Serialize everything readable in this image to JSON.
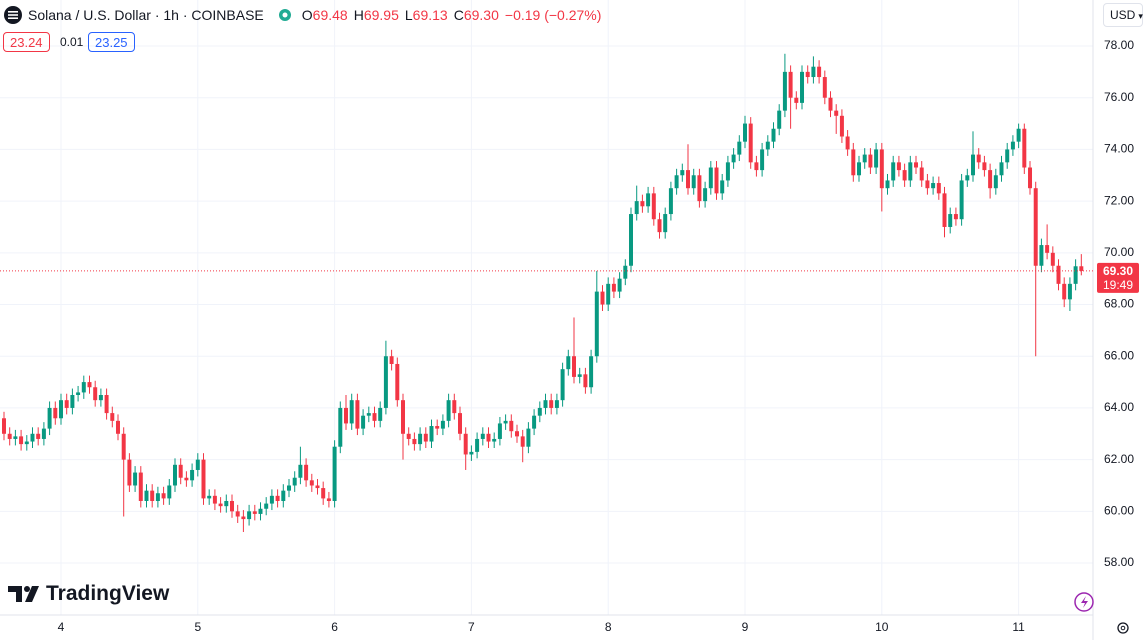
{
  "header": {
    "symbol": "Solana / U.S. Dollar · 1h · COINBASE",
    "o_label": "O",
    "o": "69.48",
    "h_label": "H",
    "h": "69.95",
    "l_label": "L",
    "l": "69.13",
    "c_label": "C",
    "c": "69.30",
    "change": "−0.19 (−0.27%)",
    "bid": "23.24",
    "spread": "0.01",
    "ask": "23.25",
    "currency": "USD",
    "brand": "TradingView"
  },
  "chart_data": {
    "type": "candlestick",
    "x": [
      0,
      1,
      2,
      3,
      4,
      5,
      6,
      7,
      8,
      9,
      10,
      11,
      12,
      13,
      14,
      15,
      16,
      17,
      18,
      19,
      20,
      21,
      22,
      23,
      24,
      25,
      26,
      27,
      28,
      29,
      30,
      31,
      32,
      33,
      34,
      35,
      36,
      37,
      38,
      39,
      40,
      41,
      42,
      43,
      44,
      45,
      46,
      47,
      48,
      49,
      50,
      51,
      52,
      53,
      54,
      55,
      56,
      57,
      58,
      59,
      60,
      61,
      62,
      63,
      64,
      65,
      66,
      67,
      68,
      69,
      70,
      71,
      72,
      73,
      74,
      75,
      76,
      77,
      78,
      79,
      80,
      81,
      82,
      83,
      84,
      85,
      86,
      87,
      88,
      89,
      90,
      91,
      92,
      93,
      94,
      95,
      96,
      97,
      98,
      99,
      100,
      101,
      102,
      103,
      104,
      105,
      106,
      107,
      108,
      109,
      110,
      111,
      112,
      113,
      114,
      115,
      116,
      117,
      118,
      119,
      120,
      121,
      122,
      123,
      124,
      125,
      126,
      127,
      128,
      129,
      130,
      131,
      132,
      133,
      134,
      135,
      136,
      137,
      138,
      139,
      140,
      141,
      142,
      143,
      144,
      145,
      146,
      147,
      148,
      149,
      150,
      151,
      152,
      153,
      154,
      155,
      156,
      157,
      158,
      159,
      160,
      161,
      162,
      163,
      164,
      165,
      166,
      167,
      168,
      169,
      170,
      171,
      172,
      173,
      174,
      175,
      176,
      177,
      178,
      179,
      180,
      181,
      182,
      183,
      184,
      185,
      186,
      187,
      188,
      189
    ],
    "open": [
      63.6,
      63.0,
      62.8,
      62.9,
      62.6,
      62.7,
      63.0,
      62.8,
      63.2,
      64.0,
      63.6,
      64.3,
      64.0,
      64.5,
      64.6,
      65.0,
      64.8,
      64.3,
      64.5,
      63.8,
      63.5,
      63.0,
      62.0,
      61.0,
      61.5,
      60.4,
      60.8,
      60.4,
      60.7,
      60.5,
      61.0,
      61.8,
      61.3,
      61.2,
      61.6,
      62.0,
      60.5,
      60.6,
      60.3,
      60.2,
      60.4,
      60.0,
      59.8,
      59.7,
      60.0,
      59.9,
      60.1,
      60.3,
      60.6,
      60.4,
      60.8,
      61.0,
      61.3,
      61.8,
      61.2,
      61.0,
      60.9,
      60.5,
      60.4,
      62.5,
      64.0,
      63.4,
      64.3,
      63.2,
      63.7,
      63.8,
      63.5,
      64.0,
      66.0,
      65.7,
      64.3,
      63.0,
      62.8,
      62.6,
      63.0,
      62.7,
      63.3,
      63.2,
      63.5,
      64.3,
      63.8,
      63.0,
      62.2,
      62.3,
      62.8,
      63.0,
      62.7,
      62.8,
      63.4,
      63.5,
      63.1,
      62.9,
      62.5,
      63.2,
      63.7,
      64.0,
      64.3,
      64.0,
      64.3,
      65.5,
      66.0,
      65.2,
      65.3,
      64.8,
      66.0,
      68.5,
      68.0,
      68.8,
      68.5,
      69.0,
      69.5,
      71.5,
      72.0,
      71.8,
      72.3,
      71.3,
      70.8,
      71.5,
      72.5,
      73.0,
      73.2,
      72.5,
      73.0,
      72.0,
      72.5,
      73.3,
      72.3,
      72.8,
      73.5,
      73.8,
      74.3,
      75.0,
      73.5,
      73.2,
      74.0,
      74.3,
      74.8,
      75.5,
      77.0,
      76.0,
      75.8,
      77.0,
      76.8,
      77.2,
      76.8,
      76.0,
      75.5,
      75.3,
      74.5,
      74.0,
      73.0,
      73.5,
      73.8,
      73.3,
      74.0,
      72.5,
      72.8,
      73.5,
      73.2,
      72.8,
      73.5,
      73.3,
      72.8,
      72.5,
      72.7,
      72.3,
      71.0,
      71.5,
      71.3,
      72.8,
      73.0,
      73.8,
      73.5,
      73.2,
      72.5,
      73.0,
      73.5,
      74.0,
      74.3,
      74.8,
      73.3,
      72.5,
      69.5,
      70.3,
      70.0,
      69.5,
      68.8,
      68.2,
      68.8,
      69.48
    ],
    "high": [
      63.85,
      63.25,
      63.15,
      63.15,
      62.95,
      63.25,
      63.25,
      63.45,
      64.25,
      64.25,
      64.55,
      64.55,
      64.75,
      64.85,
      65.25,
      65.25,
      65.05,
      64.75,
      64.75,
      64.05,
      63.75,
      63.25,
      62.25,
      61.75,
      61.75,
      61.05,
      61.05,
      60.95,
      60.95,
      61.25,
      62.05,
      62.05,
      61.55,
      61.85,
      62.25,
      62.25,
      60.85,
      60.85,
      60.55,
      60.65,
      60.65,
      60.25,
      60.05,
      60.25,
      60.25,
      60.35,
      60.55,
      60.85,
      60.85,
      61.05,
      61.25,
      61.55,
      62.5,
      62.05,
      61.45,
      61.25,
      61.15,
      60.75,
      62.75,
      64.25,
      64.5,
      64.55,
      64.55,
      63.95,
      64.05,
      64.05,
      64.25,
      66.6,
      66.25,
      65.95,
      64.55,
      63.25,
      63.05,
      63.25,
      63.25,
      63.55,
      63.55,
      63.75,
      64.55,
      64.55,
      64.05,
      63.25,
      62.55,
      63.05,
      63.25,
      63.25,
      63.05,
      63.65,
      63.75,
      63.75,
      63.35,
      63.15,
      63.45,
      63.95,
      64.25,
      64.55,
      64.55,
      64.55,
      65.75,
      66.25,
      67.5,
      65.55,
      65.55,
      66.25,
      69.3,
      68.75,
      69.05,
      69.05,
      69.25,
      69.75,
      71.75,
      72.6,
      72.25,
      72.55,
      72.55,
      71.55,
      71.75,
      72.75,
      73.25,
      73.45,
      74.2,
      73.25,
      73.25,
      72.75,
      73.55,
      73.55,
      73.05,
      73.75,
      74.05,
      74.55,
      75.3,
      75.25,
      73.75,
      74.25,
      74.55,
      75.05,
      75.75,
      77.7,
      77.25,
      76.25,
      77.25,
      77.25,
      77.6,
      77.45,
      77.05,
      76.25,
      75.75,
      75.55,
      74.75,
      74.25,
      73.75,
      74.05,
      74.05,
      74.25,
      74.25,
      73.05,
      73.75,
      73.75,
      73.45,
      73.75,
      73.75,
      73.55,
      73.05,
      72.95,
      72.95,
      72.55,
      71.75,
      71.75,
      73.05,
      73.25,
      74.7,
      74.05,
      73.75,
      73.45,
      73.25,
      73.75,
      74.25,
      74.55,
      75.0,
      75.0,
      73.55,
      72.75,
      70.55,
      71.1,
      70.25,
      69.75,
      69.05,
      69.05,
      69.75,
      69.95
    ],
    "low": [
      62.75,
      62.55,
      62.55,
      62.35,
      62.35,
      62.45,
      62.55,
      62.55,
      62.95,
      63.35,
      63.35,
      63.75,
      63.75,
      64.25,
      64.35,
      64.55,
      64.05,
      64.05,
      63.55,
      63.25,
      62.75,
      59.8,
      60.75,
      60.75,
      60.15,
      60.15,
      60.15,
      60.15,
      60.25,
      60.25,
      60.75,
      61.05,
      60.95,
      60.95,
      61.35,
      60.25,
      60.25,
      60.05,
      59.95,
      59.95,
      59.75,
      59.55,
      59.2,
      59.45,
      59.65,
      59.65,
      59.85,
      60.05,
      60.15,
      60.15,
      60.55,
      60.75,
      61.05,
      60.95,
      60.75,
      60.65,
      60.25,
      60.15,
      60.15,
      62.25,
      63.15,
      63.15,
      62.95,
      62.95,
      63.45,
      63.25,
      63.25,
      63.75,
      65.45,
      64.05,
      62.0,
      62.55,
      62.35,
      62.35,
      62.45,
      62.45,
      62.95,
      62.95,
      63.25,
      63.55,
      62.75,
      61.6,
      61.95,
      62.05,
      62.55,
      62.45,
      62.45,
      62.55,
      63.15,
      62.85,
      62.65,
      61.9,
      62.25,
      62.95,
      63.45,
      63.75,
      63.75,
      63.75,
      64.05,
      65.25,
      64.95,
      64.95,
      64.55,
      64.55,
      65.75,
      67.75,
      67.75,
      68.25,
      68.25,
      68.75,
      69.25,
      71.25,
      71.55,
      71.55,
      71.05,
      70.55,
      70.55,
      71.25,
      72.25,
      72.75,
      72.25,
      72.25,
      71.75,
      71.75,
      72.25,
      72.05,
      72.05,
      72.55,
      73.25,
      73.55,
      74.05,
      73.25,
      72.95,
      72.95,
      73.75,
      74.05,
      74.55,
      75.25,
      74.8,
      75.55,
      75.55,
      76.55,
      76.55,
      76.55,
      75.75,
      75.25,
      74.6,
      74.25,
      73.75,
      72.75,
      72.75,
      73.25,
      73.05,
      73.05,
      71.6,
      72.25,
      72.55,
      72.95,
      72.55,
      72.55,
      73.05,
      72.55,
      72.25,
      72.25,
      72.05,
      70.6,
      70.75,
      71.05,
      71.05,
      72.55,
      72.75,
      73.25,
      72.95,
      72.1,
      72.25,
      72.75,
      73.25,
      73.75,
      74.05,
      73.05,
      72.25,
      66.0,
      69.25,
      69.75,
      69.25,
      68.55,
      67.9,
      67.75,
      68.55,
      69.13
    ],
    "close": [
      63.0,
      62.8,
      62.9,
      62.6,
      62.7,
      63.0,
      62.8,
      63.2,
      64.0,
      63.6,
      64.3,
      64.0,
      64.5,
      64.6,
      65.0,
      64.8,
      64.3,
      64.5,
      63.8,
      63.5,
      63.0,
      62.0,
      61.0,
      61.5,
      60.4,
      60.8,
      60.4,
      60.7,
      60.5,
      61.0,
      61.8,
      61.3,
      61.2,
      61.6,
      62.0,
      60.5,
      60.6,
      60.3,
      60.2,
      60.4,
      60.0,
      59.8,
      59.7,
      60.0,
      59.9,
      60.1,
      60.3,
      60.6,
      60.4,
      60.8,
      61.0,
      61.3,
      61.8,
      61.2,
      61.0,
      60.9,
      60.5,
      60.4,
      62.5,
      64.0,
      63.4,
      64.3,
      63.2,
      63.7,
      63.8,
      63.5,
      64.0,
      66.0,
      65.7,
      64.3,
      63.0,
      62.8,
      62.6,
      63.0,
      62.7,
      63.3,
      63.2,
      63.5,
      64.3,
      63.8,
      63.0,
      62.2,
      62.3,
      62.8,
      63.0,
      62.7,
      62.8,
      63.4,
      63.5,
      63.1,
      62.9,
      62.5,
      63.2,
      63.7,
      64.0,
      64.3,
      64.0,
      64.3,
      65.5,
      66.0,
      65.2,
      65.3,
      64.8,
      66.0,
      68.5,
      68.0,
      68.8,
      68.5,
      69.0,
      69.5,
      71.5,
      72.0,
      71.8,
      72.3,
      71.3,
      70.8,
      71.5,
      72.5,
      73.0,
      73.2,
      72.5,
      73.0,
      72.0,
      72.5,
      73.3,
      72.3,
      72.8,
      73.5,
      73.8,
      74.3,
      75.0,
      73.5,
      73.2,
      74.0,
      74.3,
      74.8,
      75.5,
      77.0,
      76.0,
      75.8,
      77.0,
      76.8,
      77.2,
      76.8,
      76.0,
      75.5,
      75.3,
      74.5,
      74.0,
      73.0,
      73.5,
      73.8,
      73.3,
      74.0,
      72.5,
      72.8,
      73.5,
      73.2,
      72.8,
      73.5,
      73.3,
      72.8,
      72.5,
      72.7,
      72.3,
      71.0,
      71.5,
      71.3,
      72.8,
      73.0,
      73.8,
      73.5,
      73.2,
      72.5,
      73.0,
      73.5,
      74.0,
      74.3,
      74.8,
      73.3,
      72.5,
      69.5,
      70.3,
      70.0,
      69.5,
      68.8,
      68.2,
      68.8,
      69.48,
      69.3
    ],
    "up_color": "#089981",
    "down_color": "#f23645",
    "xlim": [
      -0.7,
      191.05
    ],
    "xticks": [
      {
        "value": 10,
        "label": "4"
      },
      {
        "value": 34,
        "label": "5"
      },
      {
        "value": 58,
        "label": "6"
      },
      {
        "value": 82,
        "label": "7"
      },
      {
        "value": 106,
        "label": "8"
      },
      {
        "value": 130,
        "label": "9"
      },
      {
        "value": 154,
        "label": "10"
      },
      {
        "value": 178,
        "label": "11"
      }
    ],
    "ylim": [
      55.99,
      79.78
    ],
    "yticks": [
      {
        "value": 58,
        "label": "58.00"
      },
      {
        "value": 60,
        "label": "60.00"
      },
      {
        "value": 62,
        "label": "62.00"
      },
      {
        "value": 64,
        "label": "64.00"
      },
      {
        "value": 66,
        "label": "66.00"
      },
      {
        "value": 68,
        "label": "68.00"
      },
      {
        "value": 70,
        "label": "70.00"
      },
      {
        "value": 72,
        "label": "72.00"
      },
      {
        "value": 74,
        "label": "74.00"
      },
      {
        "value": 76,
        "label": "76.00"
      },
      {
        "value": 78,
        "label": "78.00"
      }
    ],
    "grid": true,
    "last_price": {
      "value": 69.3,
      "label": "69.30"
    },
    "countdown": "19:49"
  }
}
